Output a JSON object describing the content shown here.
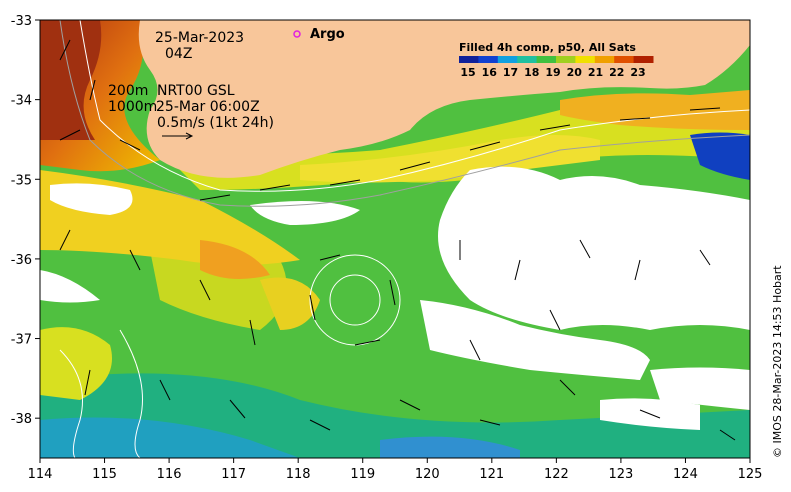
{
  "map": {
    "date": "25-Mar-2023",
    "time": "04Z",
    "contour_depths": "200m\n1000m",
    "current_product": "NRT00 GSL",
    "current_time": "25-Mar 06:00Z",
    "scale_label": "0.5m/s (1kt 24h)",
    "argo_label": "Argo",
    "credit": "© IMOS 28-Mar-2023 14:53 Hobart",
    "colors": {
      "land": "#f8c69a",
      "argo_marker": "#e020e0",
      "no_data": "#ffffff"
    }
  },
  "legend": {
    "title": "Filled 4h comp, p50, All Sats",
    "ticks": [
      "15",
      "16",
      "17",
      "18",
      "19",
      "20",
      "21",
      "22",
      "23"
    ],
    "colors": [
      "#10209a",
      "#1040d0",
      "#10a0e0",
      "#20c0a0",
      "#40c040",
      "#a0d020",
      "#f0e000",
      "#f0a000",
      "#e05000",
      "#b02000"
    ]
  },
  "axes": {
    "x_ticks": [
      "114",
      "115",
      "116",
      "117",
      "118",
      "119",
      "120",
      "121",
      "122",
      "123",
      "124",
      "125"
    ],
    "y_ticks": [
      "-33",
      "-34",
      "-35",
      "-36",
      "-37",
      "-38"
    ]
  },
  "chart_data": {
    "type": "heatmap",
    "xlim": [
      114,
      125
    ],
    "ylim": [
      -38.5,
      -33
    ],
    "x_ticks": [
      114,
      115,
      116,
      117,
      118,
      119,
      120,
      121,
      122,
      123,
      124,
      125
    ],
    "y_ticks": [
      -33,
      -34,
      -35,
      -36,
      -37,
      -38
    ],
    "color_scale": [
      15,
      23
    ],
    "argo_float": {
      "lon": 117.95,
      "lat": -33.15
    }
  }
}
